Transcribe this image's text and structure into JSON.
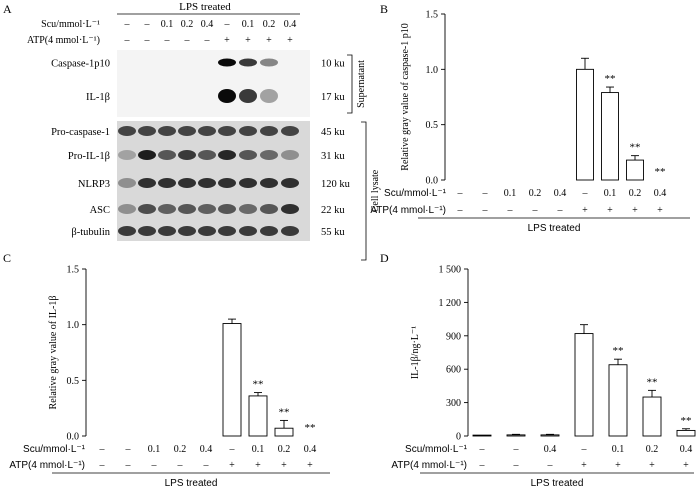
{
  "panel_labels": {
    "a": "A",
    "b": "B",
    "c": "C",
    "d": "D"
  },
  "blot": {
    "header": "LPS treated",
    "scu_label": "Scu/mmol·L⁻¹",
    "atp_label": "ATP(4 mmol·L⁻¹)",
    "scu_values": [
      "–",
      "–",
      "0.1",
      "0.2",
      "0.4",
      "–",
      "0.1",
      "0.2",
      "0.4"
    ],
    "atp_values": [
      "–",
      "–",
      "–",
      "–",
      "–",
      "+",
      "+",
      "+",
      "+"
    ],
    "rows": [
      {
        "name": "Caspase-1p10",
        "size": "10 ku"
      },
      {
        "name": "IL-1β",
        "size": "17 ku"
      },
      {
        "name": "Pro-caspase-1",
        "size": "45 ku"
      },
      {
        "name": "Pro-IL-1β",
        "size": "31 ku"
      },
      {
        "name": "NLRP3",
        "size": "120 ku"
      },
      {
        "name": "ASC",
        "size": "22 ku"
      },
      {
        "name": "β-tubulin",
        "size": "55 ku"
      }
    ],
    "group_supernatant": "Supernatant",
    "group_cell_lysate": "Cell lysate"
  },
  "chart_data": [
    {
      "panel": "B",
      "type": "bar",
      "ylabel": "Relative  gray value of caspase-1 p10",
      "ylim": [
        0,
        1.5
      ],
      "yticks": [
        "0.0",
        "0.5",
        "1.0",
        "1.5"
      ],
      "values": [
        0,
        0,
        0,
        0,
        0,
        1.0,
        0.79,
        0.18,
        0
      ],
      "errors": [
        0,
        0,
        0,
        0,
        0,
        0.1,
        0.05,
        0.04,
        0
      ],
      "sig": [
        "",
        "",
        "",
        "",
        "",
        "",
        "**",
        "**",
        "**"
      ],
      "row1_label": "Scu/mmol·L⁻¹",
      "row1": [
        "–",
        "–",
        "0.1",
        "0.2",
        "0.4",
        "–",
        "0.1",
        "0.2",
        "0.4"
      ],
      "row2_label": "ATP(4 mmol·L⁻¹)",
      "row2": [
        "–",
        "–",
        "–",
        "–",
        "–",
        "+",
        "+",
        "+",
        "+"
      ],
      "group_label": "LPS treated"
    },
    {
      "panel": "C",
      "type": "bar",
      "ylabel": "Relative gray value of IL-1β",
      "ylim": [
        0,
        1.5
      ],
      "yticks": [
        "0.0",
        "0.5",
        "1.0",
        "1.5"
      ],
      "values": [
        0,
        0,
        0,
        0,
        0,
        1.01,
        0.36,
        0.07,
        0
      ],
      "errors": [
        0,
        0,
        0,
        0,
        0,
        0.04,
        0.03,
        0.07,
        0
      ],
      "sig": [
        "",
        "",
        "",
        "",
        "",
        "",
        "**",
        "**",
        "**"
      ],
      "row1_label": "Scu/mmol·L⁻¹",
      "row1": [
        "–",
        "–",
        "0.1",
        "0.2",
        "0.4",
        "–",
        "0.1",
        "0.2",
        "0.4"
      ],
      "row2_label": "ATP(4 mmol·L⁻¹)",
      "row2": [
        "–",
        "–",
        "–",
        "–",
        "–",
        "+",
        "+",
        "+",
        "+"
      ],
      "group_label": "LPS treated"
    },
    {
      "panel": "D",
      "type": "bar",
      "ylabel": "IL-1β/ng·L⁻¹",
      "ylim": [
        0,
        1500
      ],
      "yticks": [
        "0",
        "300",
        "600",
        "900",
        "1 200",
        "1 500"
      ],
      "values": [
        8,
        10,
        10,
        920,
        640,
        350,
        50
      ],
      "errors": [
        0,
        5,
        5,
        80,
        50,
        60,
        15
      ],
      "sig": [
        "",
        "",
        "",
        "",
        "**",
        "**",
        "**"
      ],
      "row1_label": "Scu/mmol·L⁻¹",
      "row1": [
        "–",
        "–",
        "0.4",
        "–",
        "0.1",
        "0.2",
        "0.4"
      ],
      "row2_label": "ATP(4 mmol·L⁻¹)",
      "row2": [
        "–",
        "–",
        "–",
        "+",
        "+",
        "+",
        "+"
      ],
      "group_label": "LPS treated"
    }
  ]
}
